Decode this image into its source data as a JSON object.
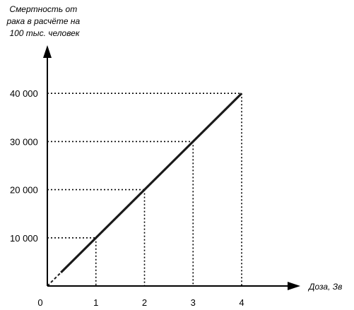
{
  "chart_data": {
    "type": "line",
    "ylabel": [
      "Смертность от",
      "рака в расчёте на",
      "100 тыс. человек"
    ],
    "xlabel": "Доза, Зв",
    "origin_label": "0",
    "x_ticks": [
      {
        "value": 1,
        "label": "1"
      },
      {
        "value": 2,
        "label": "2"
      },
      {
        "value": 3,
        "label": "3"
      },
      {
        "value": 4,
        "label": "4"
      }
    ],
    "y_ticks": [
      {
        "value": 10000,
        "label": "10 000"
      },
      {
        "value": 20000,
        "label": "20 000"
      },
      {
        "value": 30000,
        "label": "30 000"
      },
      {
        "value": 40000,
        "label": "40 000"
      }
    ],
    "xlim": [
      0,
      5
    ],
    "ylim": [
      0,
      50000
    ],
    "series": [
      {
        "x": [
          0.28,
          4
        ],
        "y": [
          2800,
          40000
        ],
        "style": "solid",
        "color": "#1a1a1a"
      },
      {
        "x": [
          0,
          0.28
        ],
        "y": [
          0,
          2800
        ],
        "style": "dashed",
        "color": "#1a1a1a"
      }
    ],
    "reference_lines": [
      {
        "x": 1,
        "y": 10000
      },
      {
        "x": 2,
        "y": 20000
      },
      {
        "x": 3,
        "y": 30000
      },
      {
        "x": 4,
        "y": 40000
      }
    ],
    "grid": false
  }
}
